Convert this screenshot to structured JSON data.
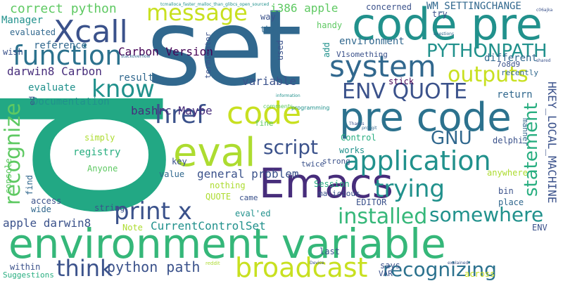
{
  "palette": {
    "deep_purple": "#440154",
    "purple": "#472d7b",
    "indigo": "#3b528b",
    "blue": "#31688e",
    "teal_blue": "#2c728e",
    "teal": "#21918c",
    "sea_green": "#28ae80",
    "green": "#5ec962",
    "lime": "#addc30",
    "yellow": "#c8e020"
  },
  "words": [
    {
      "text": "set",
      "color": "#31688e"
    },
    {
      "text": "p",
      "color": "#22a884"
    },
    {
      "text": "environment variable",
      "color": "#35b779"
    },
    {
      "text": "code pre",
      "color": "#21918c"
    },
    {
      "text": "pre code",
      "color": "#2c728e"
    },
    {
      "text": "Emacs",
      "color": "#472d7b"
    },
    {
      "text": "eval",
      "color": "#addc30"
    },
    {
      "text": "code",
      "color": "#c8e020"
    },
    {
      "text": "Xcall",
      "color": "#3b528b"
    },
    {
      "text": "function",
      "color": "#2c728e"
    },
    {
      "text": "system",
      "color": "#31688e"
    },
    {
      "text": "message",
      "color": "#c8e020"
    },
    {
      "text": "broadcast",
      "color": "#c8e020"
    },
    {
      "text": "application",
      "color": "#21918c"
    },
    {
      "text": "print x",
      "color": "#3b528b"
    },
    {
      "text": "ENV QUOTE",
      "color": "#3b528b"
    },
    {
      "text": "know",
      "color": "#21918c"
    },
    {
      "text": "href",
      "color": "#3b528b"
    },
    {
      "text": "trying",
      "color": "#21918c"
    },
    {
      "text": "recognize",
      "color": "#5ec962"
    },
    {
      "text": "recognizing",
      "color": "#2c728e"
    },
    {
      "text": "think",
      "color": "#3b528b"
    },
    {
      "text": "outputs",
      "color": "#c8e020"
    },
    {
      "text": "PYTHONPATH",
      "color": "#21918c"
    },
    {
      "text": "installed",
      "color": "#35b779"
    },
    {
      "text": "statement",
      "color": "#28ae80"
    },
    {
      "text": "somewhere",
      "color": "#21918c"
    },
    {
      "text": "script",
      "color": "#3b528b"
    },
    {
      "text": "GNU",
      "color": "#31688e"
    },
    {
      "text": "correct python",
      "color": "#5ec962"
    },
    {
      "text": "python path",
      "color": "#3b528b"
    },
    {
      "text": "Carbon Version",
      "color": "#440154"
    },
    {
      "text": "darwin8 Carbon",
      "color": "#472d7b"
    },
    {
      "text": "bashrc Maybe",
      "color": "#472d7b"
    },
    {
      "text": "general problem",
      "color": "#3b528b"
    },
    {
      "text": "apple darwin8",
      "color": "#3b528b"
    },
    {
      "text": "CurrentControlSet",
      "color": "#21918c"
    },
    {
      "text": "HKEY_LOCAL_MACHINE",
      "color": "#3b528b"
    },
    {
      "text": "WM_SETTINGCHANGE",
      "color": "#31688e"
    },
    {
      "text": "i386 apple",
      "color": "#5ec962"
    },
    {
      "text": "environment",
      "color": "#31688e"
    },
    {
      "text": "variable",
      "color": "#3b528b"
    },
    {
      "text": "Documentation",
      "color": "#21918c"
    },
    {
      "text": "evaluate",
      "color": "#21918c"
    },
    {
      "text": "reference",
      "color": "#31688e"
    },
    {
      "text": "evaluated",
      "color": "#31688e"
    },
    {
      "text": "Manager",
      "color": "#21918c"
    },
    {
      "text": "wish",
      "color": "#3b528b"
    },
    {
      "text": "result",
      "color": "#31688e"
    },
    {
      "text": "different",
      "color": "#31688e"
    },
    {
      "text": "return",
      "color": "#31688e"
    },
    {
      "text": "registry",
      "color": "#28ae80"
    },
    {
      "text": "Anyone",
      "color": "#5ec962"
    },
    {
      "text": "simply",
      "color": "#addc30"
    },
    {
      "text": "console",
      "color": "#5ec962"
    },
    {
      "text": "find",
      "color": "#31688e"
    },
    {
      "text": "wide",
      "color": "#31688e"
    },
    {
      "text": "access",
      "color": "#3b528b"
    },
    {
      "text": "within",
      "color": "#3b528b"
    },
    {
      "text": "Suggestions",
      "color": "#28ae80"
    },
    {
      "text": "string",
      "color": "#3b528b"
    },
    {
      "text": "Note",
      "color": "#addc30"
    },
    {
      "text": "value",
      "color": "#31688e"
    },
    {
      "text": "key",
      "color": "#3b528b"
    },
    {
      "text": "nothing",
      "color": "#addc30"
    },
    {
      "text": "QUOTE",
      "color": "#addc30"
    },
    {
      "text": "came",
      "color": "#3b528b"
    },
    {
      "text": "eval'ed",
      "color": "#21918c"
    },
    {
      "text": "Session",
      "color": "#28ae80"
    },
    {
      "text": "malicious",
      "color": "#3b528b"
    },
    {
      "text": "twice",
      "color": "#3b528b"
    },
    {
      "text": "strong",
      "color": "#3b528b"
    },
    {
      "text": "works",
      "color": "#21918c"
    },
    {
      "text": "Control",
      "color": "#28ae80"
    },
    {
      "text": "EDITOR",
      "color": "#3b528b"
    },
    {
      "text": "place",
      "color": "#31688e"
    },
    {
      "text": "bin",
      "color": "#3b528b"
    },
    {
      "text": "anywhere",
      "color": "#addc30"
    },
    {
      "text": "manner",
      "color": "#31688e"
    },
    {
      "text": "delphi",
      "color": "#3b528b"
    },
    {
      "text": "fine",
      "color": "#5ec962"
    },
    {
      "text": "ENV",
      "color": "#3b528b"
    },
    {
      "text": "last",
      "color": "#3b528b"
    },
    {
      "text": "says",
      "color": "#3b528b"
    },
    {
      "text": "VAR",
      "color": "#3b528b"
    },
    {
      "text": "across",
      "color": "#c8e020"
    },
    {
      "text": "stick",
      "color": "#440154"
    },
    {
      "text": "used",
      "color": "#3b528b"
    },
    {
      "text": "handy",
      "color": "#5ec962"
    },
    {
      "text": "thing",
      "color": "#31688e"
    },
    {
      "text": "way",
      "color": "#3b528b"
    },
    {
      "text": "concerned",
      "color": "#3b528b"
    },
    {
      "text": "try",
      "color": "#3b528b"
    },
    {
      "text": "7o8d9",
      "color": "#3b528b"
    },
    {
      "text": "recently",
      "color": "#31688e"
    },
    {
      "text": "add",
      "color": "#21918c"
    },
    {
      "text": "V1something",
      "color": "#3b528b"
    },
    {
      "text": "terminator",
      "color": "#3b528b"
    },
    {
      "text": "ed",
      "color": "#3b528b"
    },
    {
      "text": "programming",
      "color": "#21918c"
    },
    {
      "text": "comments",
      "color": "#5ec962"
    },
    {
      "text": "reddit",
      "color": "#addc30"
    },
    {
      "text": "stackoverflow",
      "color": "#31688e"
    },
    {
      "text": "tcmalloca_faster_malloc_than_glibcs_open_sourced",
      "color": "#21918c"
    },
    {
      "text": "questions",
      "color": "#31688e"
    },
    {
      "text": "c06ajka",
      "color": "#3b528b"
    },
    {
      "text": "shared",
      "color": "#3b528b"
    },
    {
      "text": "information",
      "color": "#21918c"
    },
    {
      "text": "proggit",
      "color": "#31688e"
    },
    {
      "text": "Thanks",
      "color": "#3b528b"
    },
    {
      "text": "explained",
      "color": "#3b528b"
    },
    {
      "text": "Device",
      "color": "#3b528b"
    }
  ]
}
